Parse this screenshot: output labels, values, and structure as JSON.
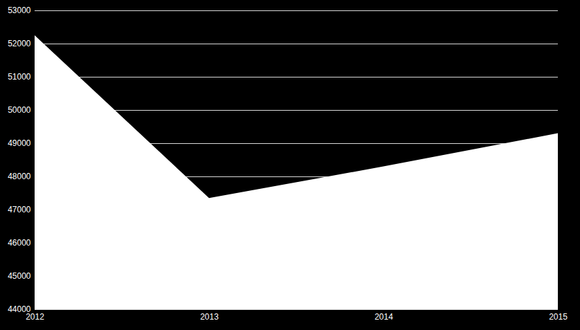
{
  "chart_data": {
    "type": "area",
    "x": [
      2012,
      2013,
      2014,
      2015
    ],
    "values": [
      52250,
      47350,
      48300,
      49300
    ],
    "color": "#ffffff",
    "xlim": [
      2012,
      2015
    ],
    "xticks": [
      2012,
      2013,
      2014,
      2015
    ],
    "ylim": [
      44000,
      53000
    ],
    "yticks": [
      44000,
      45000,
      46000,
      47000,
      48000,
      49000,
      50000,
      51000,
      52000,
      53000
    ],
    "grid": true
  }
}
